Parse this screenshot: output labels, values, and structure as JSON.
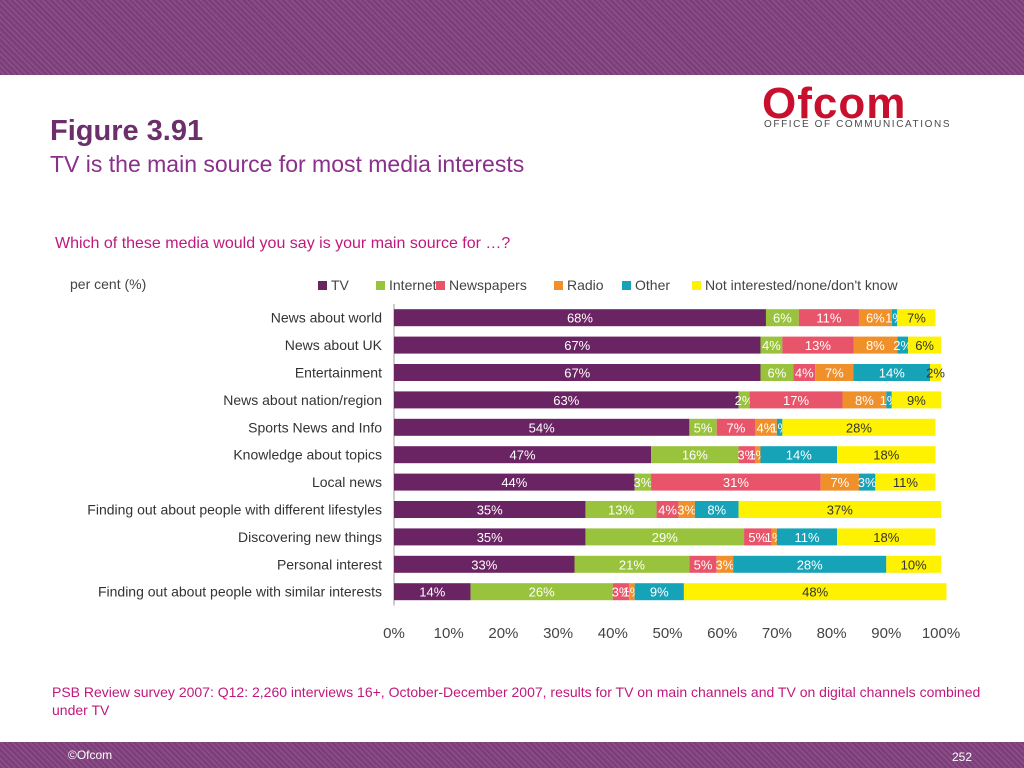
{
  "header": {
    "figure_label": "Figure 3.91",
    "subtitle": "TV is the main source for most media interests",
    "logo_text": "Ofcom",
    "logo_tagline": "OFFICE OF COMMUNICATIONS"
  },
  "question": "Which of these media would you say is your main source for …?",
  "source_note": "PSB Review survey 2007: Q12: 2,260 interviews 16+, October-December 2007, results for TV on main channels and TV on digital channels combined under TV",
  "footer": {
    "copyright": "©Ofcom",
    "page_number": "252"
  },
  "chart_data": {
    "type": "bar",
    "orientation": "horizontal",
    "stacked": true,
    "ylabel": "per cent (%)",
    "legend_position": "top",
    "xlim": [
      0,
      100
    ],
    "x_ticks": [
      "0%",
      "10%",
      "20%",
      "30%",
      "40%",
      "50%",
      "60%",
      "70%",
      "80%",
      "90%",
      "100%"
    ],
    "categories": [
      "News about world",
      "News about UK",
      "Entertainment",
      "News about nation/region",
      "Sports News and Info",
      "Knowledge about topics",
      "Local news",
      "Finding out about people with different lifestyles",
      "Discovering new things",
      "Personal interest",
      "Finding out about people with similar interests"
    ],
    "series": [
      {
        "name": "TV",
        "color": "#6b2463",
        "values": [
          68,
          67,
          67,
          63,
          54,
          47,
          44,
          35,
          35,
          33,
          14
        ]
      },
      {
        "name": "Internet",
        "color": "#99c33c",
        "values": [
          6,
          4,
          6,
          2,
          5,
          16,
          3,
          13,
          29,
          21,
          26
        ]
      },
      {
        "name": "Newspapers",
        "color": "#e8546a",
        "values": [
          11,
          13,
          4,
          17,
          7,
          3,
          31,
          4,
          5,
          5,
          3
        ]
      },
      {
        "name": "Radio",
        "color": "#f0902a",
        "values": [
          6,
          8,
          7,
          8,
          4,
          1,
          7,
          3,
          1,
          3,
          1
        ]
      },
      {
        "name": "Other",
        "color": "#16a3b8",
        "values": [
          1,
          2,
          14,
          1,
          1,
          14,
          3,
          8,
          11,
          28,
          9
        ]
      },
      {
        "name": "Not interested/none/don't know",
        "color": "#fff200",
        "values": [
          7,
          6,
          2,
          9,
          28,
          18,
          11,
          37,
          18,
          10,
          48
        ]
      }
    ]
  }
}
